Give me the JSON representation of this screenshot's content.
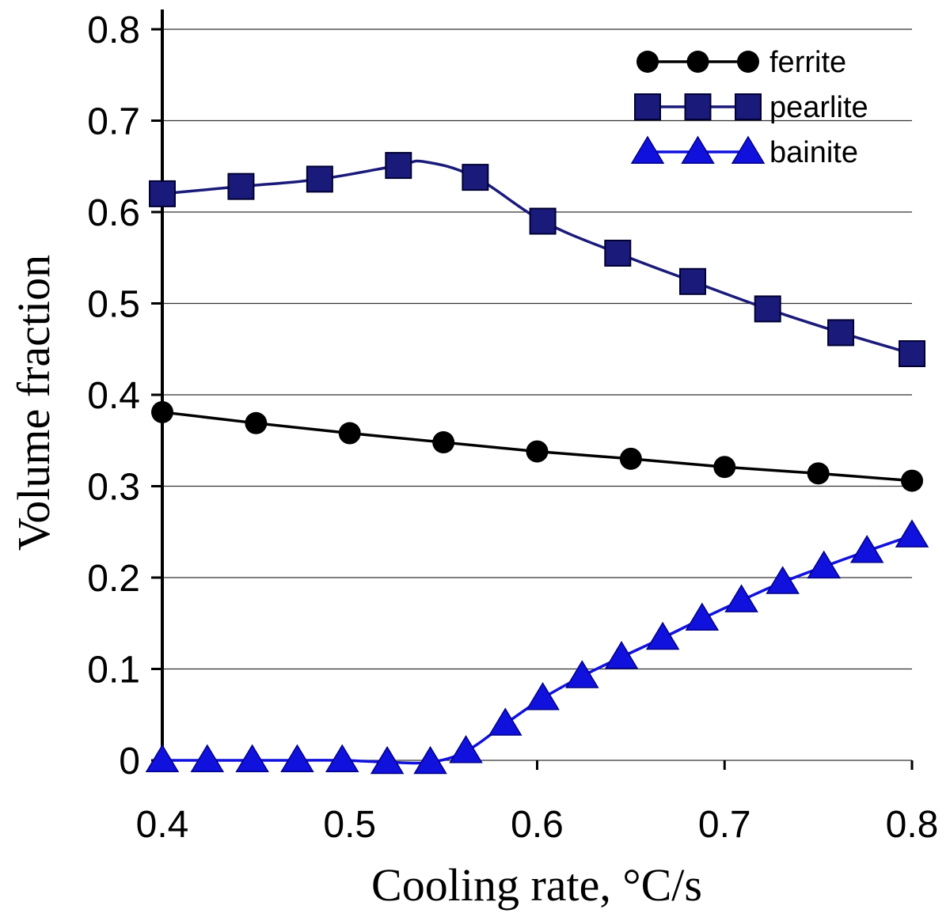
{
  "chart_data": {
    "type": "line",
    "title": "",
    "xlabel": "Cooling rate, °C/s",
    "ylabel": "Volume fraction",
    "xlim": [
      0.4,
      0.8
    ],
    "ylim": [
      0,
      0.8
    ],
    "xticks": [
      0.4,
      0.5,
      0.6,
      0.7,
      0.8
    ],
    "yticks": [
      0,
      0.1,
      0.2,
      0.3,
      0.4,
      0.5,
      0.6,
      0.7,
      0.8
    ],
    "xtick_labels": [
      "0.4",
      "0.5",
      "0.6",
      "0.7",
      "0.8"
    ],
    "ytick_labels": [
      "0",
      "0.1",
      "0.2",
      "0.3",
      "0.4",
      "0.5",
      "0.6",
      "0.7",
      "0.8"
    ],
    "grid": "horizontal",
    "legend_position": "top-right",
    "series": [
      {
        "name": "ferrite",
        "marker": "circle",
        "color": "#000000",
        "x": [
          0.4,
          0.45,
          0.5,
          0.55,
          0.6,
          0.65,
          0.7,
          0.75,
          0.8
        ],
        "values": [
          0.381,
          0.369,
          0.358,
          0.348,
          0.338,
          0.33,
          0.321,
          0.314,
          0.306
        ]
      },
      {
        "name": "pearlite",
        "marker": "square",
        "color": "#1a1a7a",
        "x": [
          0.4,
          0.442,
          0.484,
          0.526,
          0.567,
          0.603,
          0.643,
          0.683,
          0.723,
          0.762,
          0.8
        ],
        "values": [
          0.62,
          0.628,
          0.636,
          0.651,
          0.638,
          0.59,
          0.555,
          0.524,
          0.494,
          0.468,
          0.445
        ],
        "peak": {
          "x": 0.54,
          "value": 0.655
        }
      },
      {
        "name": "bainite",
        "marker": "triangle",
        "color": "#1111dd",
        "x": [
          0.4,
          0.424,
          0.448,
          0.472,
          0.496,
          0.52,
          0.543,
          0.562,
          0.583,
          0.603,
          0.624,
          0.645,
          0.667,
          0.688,
          0.709,
          0.731,
          0.753,
          0.776,
          0.8
        ],
        "values": [
          0,
          0,
          0,
          0,
          0,
          -0.002,
          -0.002,
          0.01,
          0.04,
          0.068,
          0.092,
          0.113,
          0.134,
          0.155,
          0.175,
          0.195,
          0.212,
          0.229,
          0.246
        ]
      }
    ]
  }
}
